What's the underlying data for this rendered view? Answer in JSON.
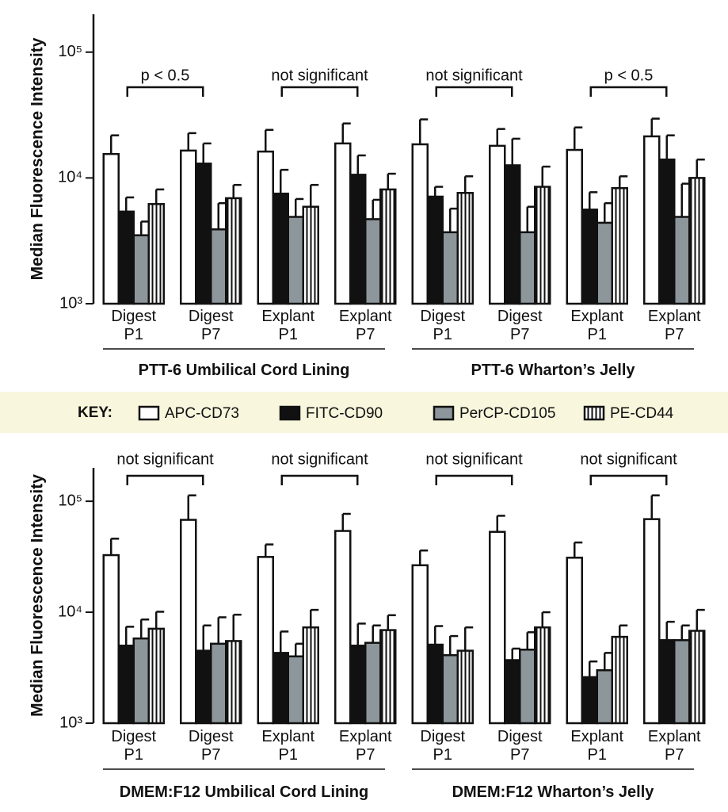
{
  "key_label": "KEY:",
  "chart_data": [
    {
      "type": "bar",
      "log_scale": true,
      "y_label": "Median Fluorescence Intensity",
      "categories": [
        "Digest P1",
        "Digest P7",
        "Explant P1",
        "Explant P7",
        "Digest P1",
        "Digest P7",
        "Explant P1",
        "Explant P7"
      ],
      "groups": [
        "PTT-6 Umbilical Cord Lining",
        "PTT-6 Wharton’s Jelly"
      ],
      "annotations": [
        "p < 0.5",
        "not significant",
        "not significant",
        "p < 0.5"
      ],
      "ylim": [
        1000,
        200000
      ],
      "yticks": [
        {
          "value": 1000,
          "label": "10³"
        },
        {
          "value": 10000,
          "label": "10⁴"
        },
        {
          "value": 100000,
          "label": "10⁵"
        }
      ],
      "series": [
        {
          "name": "APC-CD73",
          "color": "#ffffff",
          "values": [
            15500,
            16500,
            16200,
            18800,
            18500,
            18000,
            16700,
            21400
          ],
          "errors": [
            6300,
            6200,
            7900,
            8300,
            10700,
            6500,
            8500,
            8200
          ]
        },
        {
          "name": "FITC-CD90",
          "color": "#111111",
          "values": [
            5400,
            13000,
            7500,
            10600,
            7100,
            12600,
            5600,
            14000
          ],
          "errors": [
            1600,
            5800,
            4100,
            4500,
            1400,
            7900,
            2100,
            7800
          ]
        },
        {
          "name": "PerCP-CD105",
          "color": "#8c969b",
          "values": [
            3500,
            3900,
            4900,
            4700,
            3700,
            3700,
            4400,
            4900
          ],
          "errors": [
            1000,
            2400,
            1900,
            2000,
            2000,
            2200,
            1900,
            4100
          ]
        },
        {
          "name": "PE-CD44",
          "color": "#ffffff",
          "pattern": "vertical-stripes",
          "values": [
            6200,
            6900,
            5900,
            8100,
            7600,
            8500,
            8300,
            10000
          ],
          "errors": [
            1900,
            1900,
            2900,
            2700,
            2700,
            3800,
            2000,
            4000
          ]
        }
      ]
    },
    {
      "type": "bar",
      "log_scale": true,
      "y_label": "Median Fluorescence Intensity",
      "categories": [
        "Digest P1",
        "Digest P7",
        "Explant P1",
        "Explant P7",
        "Digest P1",
        "Digest P7",
        "Explant P1",
        "Explant P7"
      ],
      "groups": [
        "DMEM:F12 Umbilical Cord Lining",
        "DMEM:F12 Wharton’s Jelly"
      ],
      "annotations": [
        "not significant",
        "not significant",
        "not significant",
        "not significant"
      ],
      "ylim": [
        1000,
        200000
      ],
      "yticks": [
        {
          "value": 1000,
          "label": "10³"
        },
        {
          "value": 10000,
          "label": "10⁴"
        },
        {
          "value": 100000,
          "label": "10⁵"
        }
      ],
      "series": [
        {
          "color": "#ffffff",
          "values": [
            32700,
            68000,
            31500,
            54000,
            26500,
            53000,
            31000,
            69000
          ],
          "errors": [
            13300,
            45000,
            9300,
            23000,
            9500,
            21000,
            11500,
            44000
          ]
        },
        {
          "color": "#111111",
          "values": [
            5000,
            4500,
            4300,
            5000,
            5100,
            3700,
            2600,
            5600
          ],
          "errors": [
            2400,
            3100,
            2400,
            2900,
            2400,
            1000,
            1000,
            2600
          ]
        },
        {
          "color": "#8c969b",
          "values": [
            5800,
            5200,
            4000,
            5300,
            4100,
            4600,
            3000,
            5600
          ],
          "errors": [
            2800,
            3800,
            1200,
            2300,
            2000,
            2000,
            1300,
            2000
          ]
        },
        {
          "color": "#ffffff",
          "pattern": "vertical-stripes",
          "values": [
            7100,
            5500,
            7300,
            6900,
            4500,
            7300,
            6000,
            6800
          ],
          "errors": [
            3000,
            4000,
            3200,
            2500,
            2800,
            2700,
            1600,
            3700
          ]
        }
      ]
    }
  ]
}
